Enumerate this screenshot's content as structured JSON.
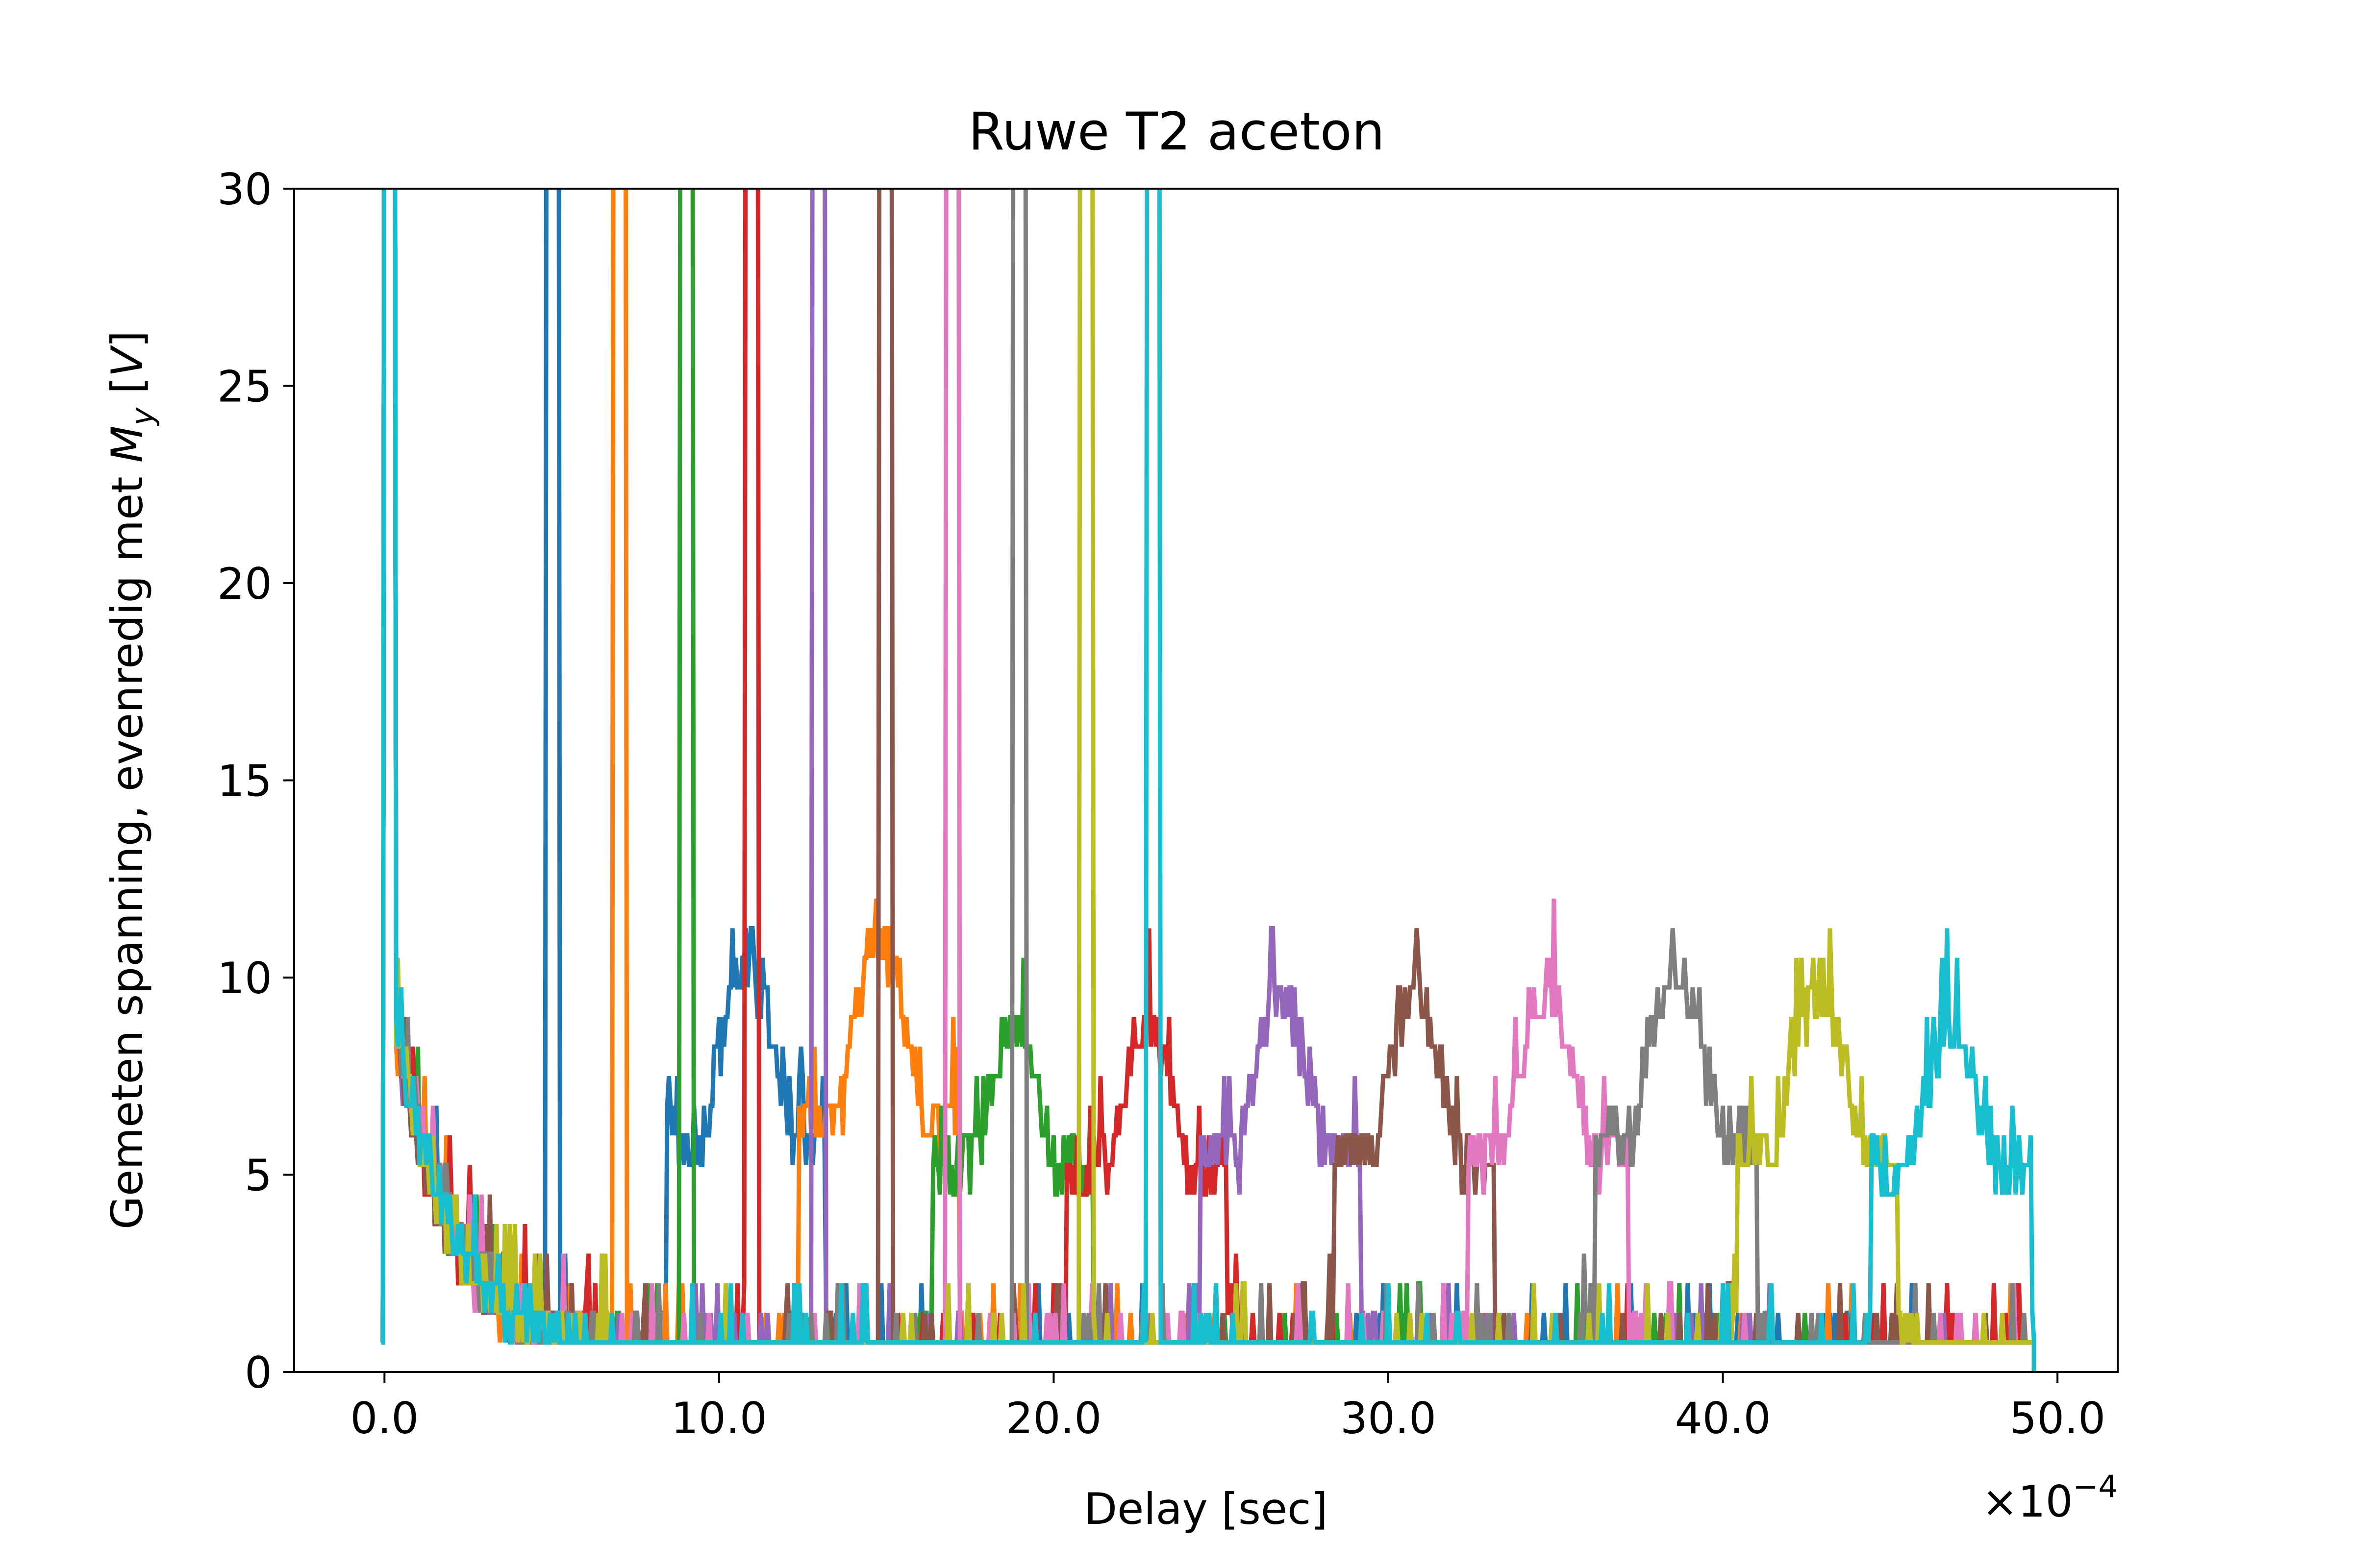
{
  "chart_data": {
    "type": "line",
    "title": "Ruwe T2 aceton",
    "xlabel": "Delay [sec]",
    "ylabel": {
      "prefix": "Gemeten spanning, evenredig met ",
      "symbol": "M",
      "subscript": "y",
      "suffix_open": " [",
      "unit": "V",
      "suffix_close": "]"
    },
    "x_offset_label": {
      "base": "×10",
      "exponent": "−4"
    },
    "xlim": [
      -2.7,
      51.8
    ],
    "ylim": [
      0,
      30
    ],
    "x_ticks": [
      0,
      10,
      20,
      30,
      40,
      50
    ],
    "x_tick_labels": [
      "0.0",
      "10.0",
      "20.0",
      "30.0",
      "40.0",
      "50.0"
    ],
    "y_ticks": [
      0,
      5,
      10,
      15,
      20,
      25,
      30
    ],
    "y_tick_labels": [
      "0",
      "5",
      "10",
      "15",
      "20",
      "25",
      "30"
    ],
    "legend": "none",
    "grid": false,
    "series": [
      {
        "color": "#1f77b4",
        "pulse": 5.0,
        "echo_center": 10.8,
        "echo_peak": 10.3
      },
      {
        "color": "#ff7f0e",
        "pulse": 7.0,
        "echo_center": 14.8,
        "echo_peak": 11.0
      },
      {
        "color": "#2ca02c",
        "pulse": 9.0,
        "echo_center": 18.8,
        "echo_peak": 8.8
      },
      {
        "color": "#d62728",
        "pulse": 11.0,
        "echo_center": 22.8,
        "echo_peak": 8.8
      },
      {
        "color": "#9467bd",
        "pulse": 13.0,
        "echo_center": 26.8,
        "echo_peak": 9.6
      },
      {
        "color": "#8c564b",
        "pulse": 15.0,
        "echo_center": 30.8,
        "echo_peak": 9.6
      },
      {
        "color": "#e377c2",
        "pulse": 17.0,
        "echo_center": 34.8,
        "echo_peak": 9.6
      },
      {
        "color": "#7f7f7f",
        "pulse": 19.0,
        "echo_center": 38.6,
        "echo_peak": 10.3
      },
      {
        "color": "#bcbd22",
        "pulse": 21.0,
        "echo_center": 42.8,
        "echo_peak": 9.6
      },
      {
        "color": "#17becf",
        "pulse": 23.0,
        "echo_center": 46.8,
        "echo_peak": 8.8
      }
    ]
  }
}
